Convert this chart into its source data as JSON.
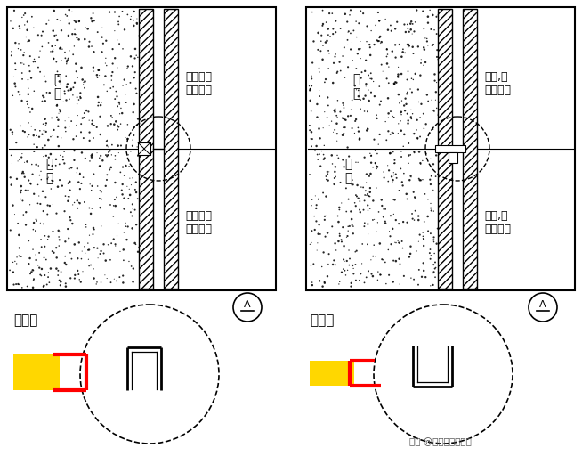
{
  "bg_color": "#ffffff",
  "label_wall": "墙\n体",
  "label_base": "基\n层",
  "label_stone_top_1": "石材、或\n软、硬包",
  "label_stone_bot_1": "石材、或\n软、硬包",
  "label_stone_top_2": "石材,或\n软、硬包",
  "label_stone_bot_2": "石材,或\n软、硬包",
  "label_steel": "不锈钢",
  "circle_label": "A",
  "watermark": "头条 @室内设计大讲堂"
}
